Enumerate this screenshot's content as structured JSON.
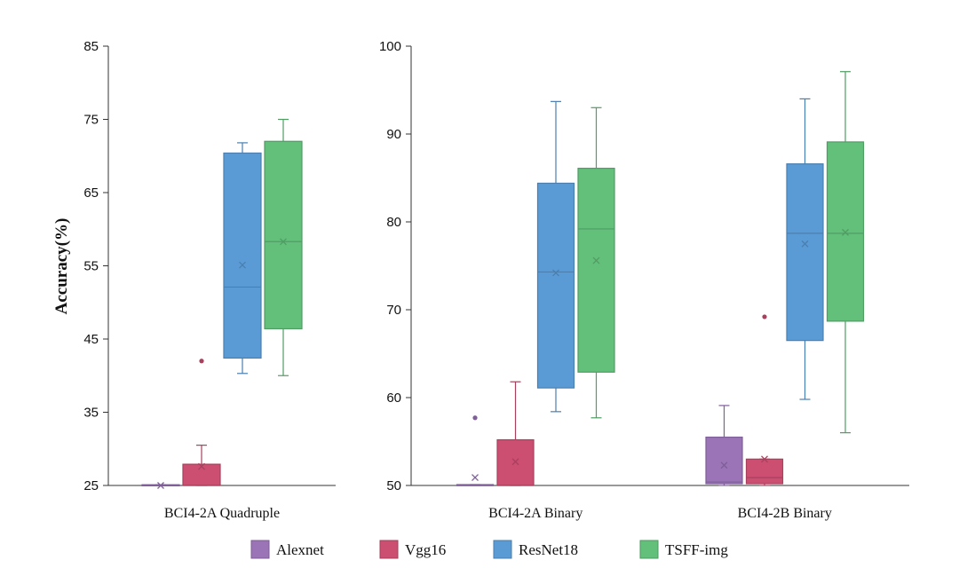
{
  "chart_data": [
    {
      "type": "box",
      "ylabel": "Accuracy(%)",
      "xlabel": "",
      "ylim": [
        25,
        85
      ],
      "yticks": [
        25,
        35,
        45,
        55,
        65,
        75,
        85
      ],
      "categories": [
        "BCI4-2A Quadruple"
      ],
      "series": [
        {
          "name": "Alexnet",
          "color": "#9b74b8",
          "boxes": [
            {
              "min": 25,
              "q1": 25,
              "median": 25,
              "q3": 25.1,
              "max": 25.1,
              "mean": 25,
              "outliers": []
            }
          ]
        },
        {
          "name": "Vgg16",
          "color": "#cc4f72",
          "boxes": [
            {
              "min": 25,
              "q1": 25,
              "median": 25,
              "q3": 27.9,
              "max": 30.5,
              "mean": 27.6,
              "outliers": [
                42
              ]
            }
          ]
        },
        {
          "name": "ResNet18",
          "color": "#5b9bd5",
          "boxes": [
            {
              "min": 40.3,
              "q1": 42.4,
              "median": 52.1,
              "q3": 70.4,
              "max": 71.8,
              "mean": 55.1,
              "outliers": []
            }
          ]
        },
        {
          "name": "TSFF-img",
          "color": "#62c07a",
          "boxes": [
            {
              "min": 40,
              "q1": 46.4,
              "median": 58.3,
              "q3": 72,
              "max": 75,
              "mean": 58.3,
              "outliers": []
            }
          ]
        }
      ]
    },
    {
      "type": "box",
      "ylabel": "",
      "xlabel": "",
      "ylim": [
        50,
        100
      ],
      "yticks": [
        50,
        60,
        70,
        80,
        90,
        100
      ],
      "categories": [
        "BCI4-2A Binary",
        "BCI4-2B Binary"
      ],
      "series": [
        {
          "name": "Alexnet",
          "color": "#9b74b8",
          "boxes": [
            {
              "min": 50,
              "q1": 50,
              "median": 50,
              "q3": 50.1,
              "max": 50.1,
              "mean": 50.9,
              "outliers": [
                57.7
              ]
            },
            {
              "min": 50,
              "q1": 50.2,
              "median": 50.4,
              "q3": 55.5,
              "max": 59.1,
              "mean": 52.3,
              "outliers": []
            }
          ]
        },
        {
          "name": "Vgg16",
          "color": "#cc4f72",
          "boxes": [
            {
              "min": 50,
              "q1": 50,
              "median": 50,
              "q3": 55.2,
              "max": 61.8,
              "mean": 52.7,
              "outliers": []
            },
            {
              "min": 50,
              "q1": 50.2,
              "median": 50.9,
              "q3": 53,
              "max": 53,
              "mean": 53,
              "outliers": [
                69.2
              ]
            }
          ]
        },
        {
          "name": "ResNet18",
          "color": "#5b9bd5",
          "boxes": [
            {
              "min": 58.4,
              "q1": 61.1,
              "median": 74.3,
              "q3": 84.4,
              "max": 93.7,
              "mean": 74.2,
              "outliers": []
            },
            {
              "min": 59.8,
              "q1": 66.5,
              "median": 78.7,
              "q3": 86.6,
              "max": 94,
              "mean": 77.5,
              "outliers": []
            }
          ]
        },
        {
          "name": "TSFF-img",
          "color": "#62c07a",
          "boxes": [
            {
              "min": 57.7,
              "q1": 62.9,
              "median": 79.2,
              "q3": 86.1,
              "max": 93,
              "mean": 75.6,
              "outliers": []
            },
            {
              "min": 56,
              "q1": 68.7,
              "median": 78.7,
              "q3": 89.1,
              "max": 97.1,
              "mean": 78.8,
              "outliers": []
            }
          ]
        }
      ]
    }
  ],
  "legend": {
    "placement": "bottom",
    "items": [
      {
        "label": "Alexnet",
        "color": "#9b74b8"
      },
      {
        "label": "Vgg16",
        "color": "#cc4f72"
      },
      {
        "label": "ResNet18",
        "color": "#5b9bd5"
      },
      {
        "label": "TSFF-img",
        "color": "#62c07a"
      }
    ]
  }
}
